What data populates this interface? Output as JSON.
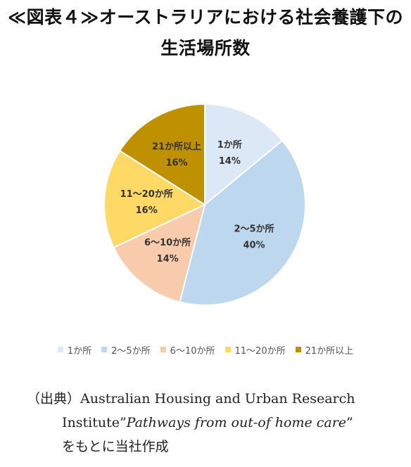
{
  "title": {
    "line1": "≪図表４≫オーストラリアにおける社会養護下の",
    "line2": "生活場所数"
  },
  "colors": {
    "slice_1": "#dce8f5",
    "slice_2": "#bdd7ee",
    "slice_3": "#f8cbad",
    "slice_4": "#ffd966",
    "slice_5": "#bf9000",
    "border": "#ffffff"
  },
  "chart_data": {
    "type": "pie",
    "title": "",
    "start_angle_deg": 0,
    "direction": "clockwise",
    "legend_position": "bottom",
    "categories": [
      "1か所",
      "2～5か所",
      "6～10か所",
      "11～20か所",
      "21か所以上"
    ],
    "values": [
      14,
      40,
      14,
      16,
      16
    ],
    "labels": [
      "14%",
      "40%",
      "14%",
      "16%",
      "16%"
    ]
  },
  "legend": {
    "items": [
      "1か所",
      "2～5か所",
      "6～10か所",
      "11～20か所",
      "21か所以上"
    ]
  },
  "source": {
    "line1": "（出典）Australian Housing and Urban Research",
    "line2_a": "Institute”",
    "line2_b": "Pathways from out-of home care",
    "line2_c": "”",
    "line3": "をもとに当社作成"
  }
}
